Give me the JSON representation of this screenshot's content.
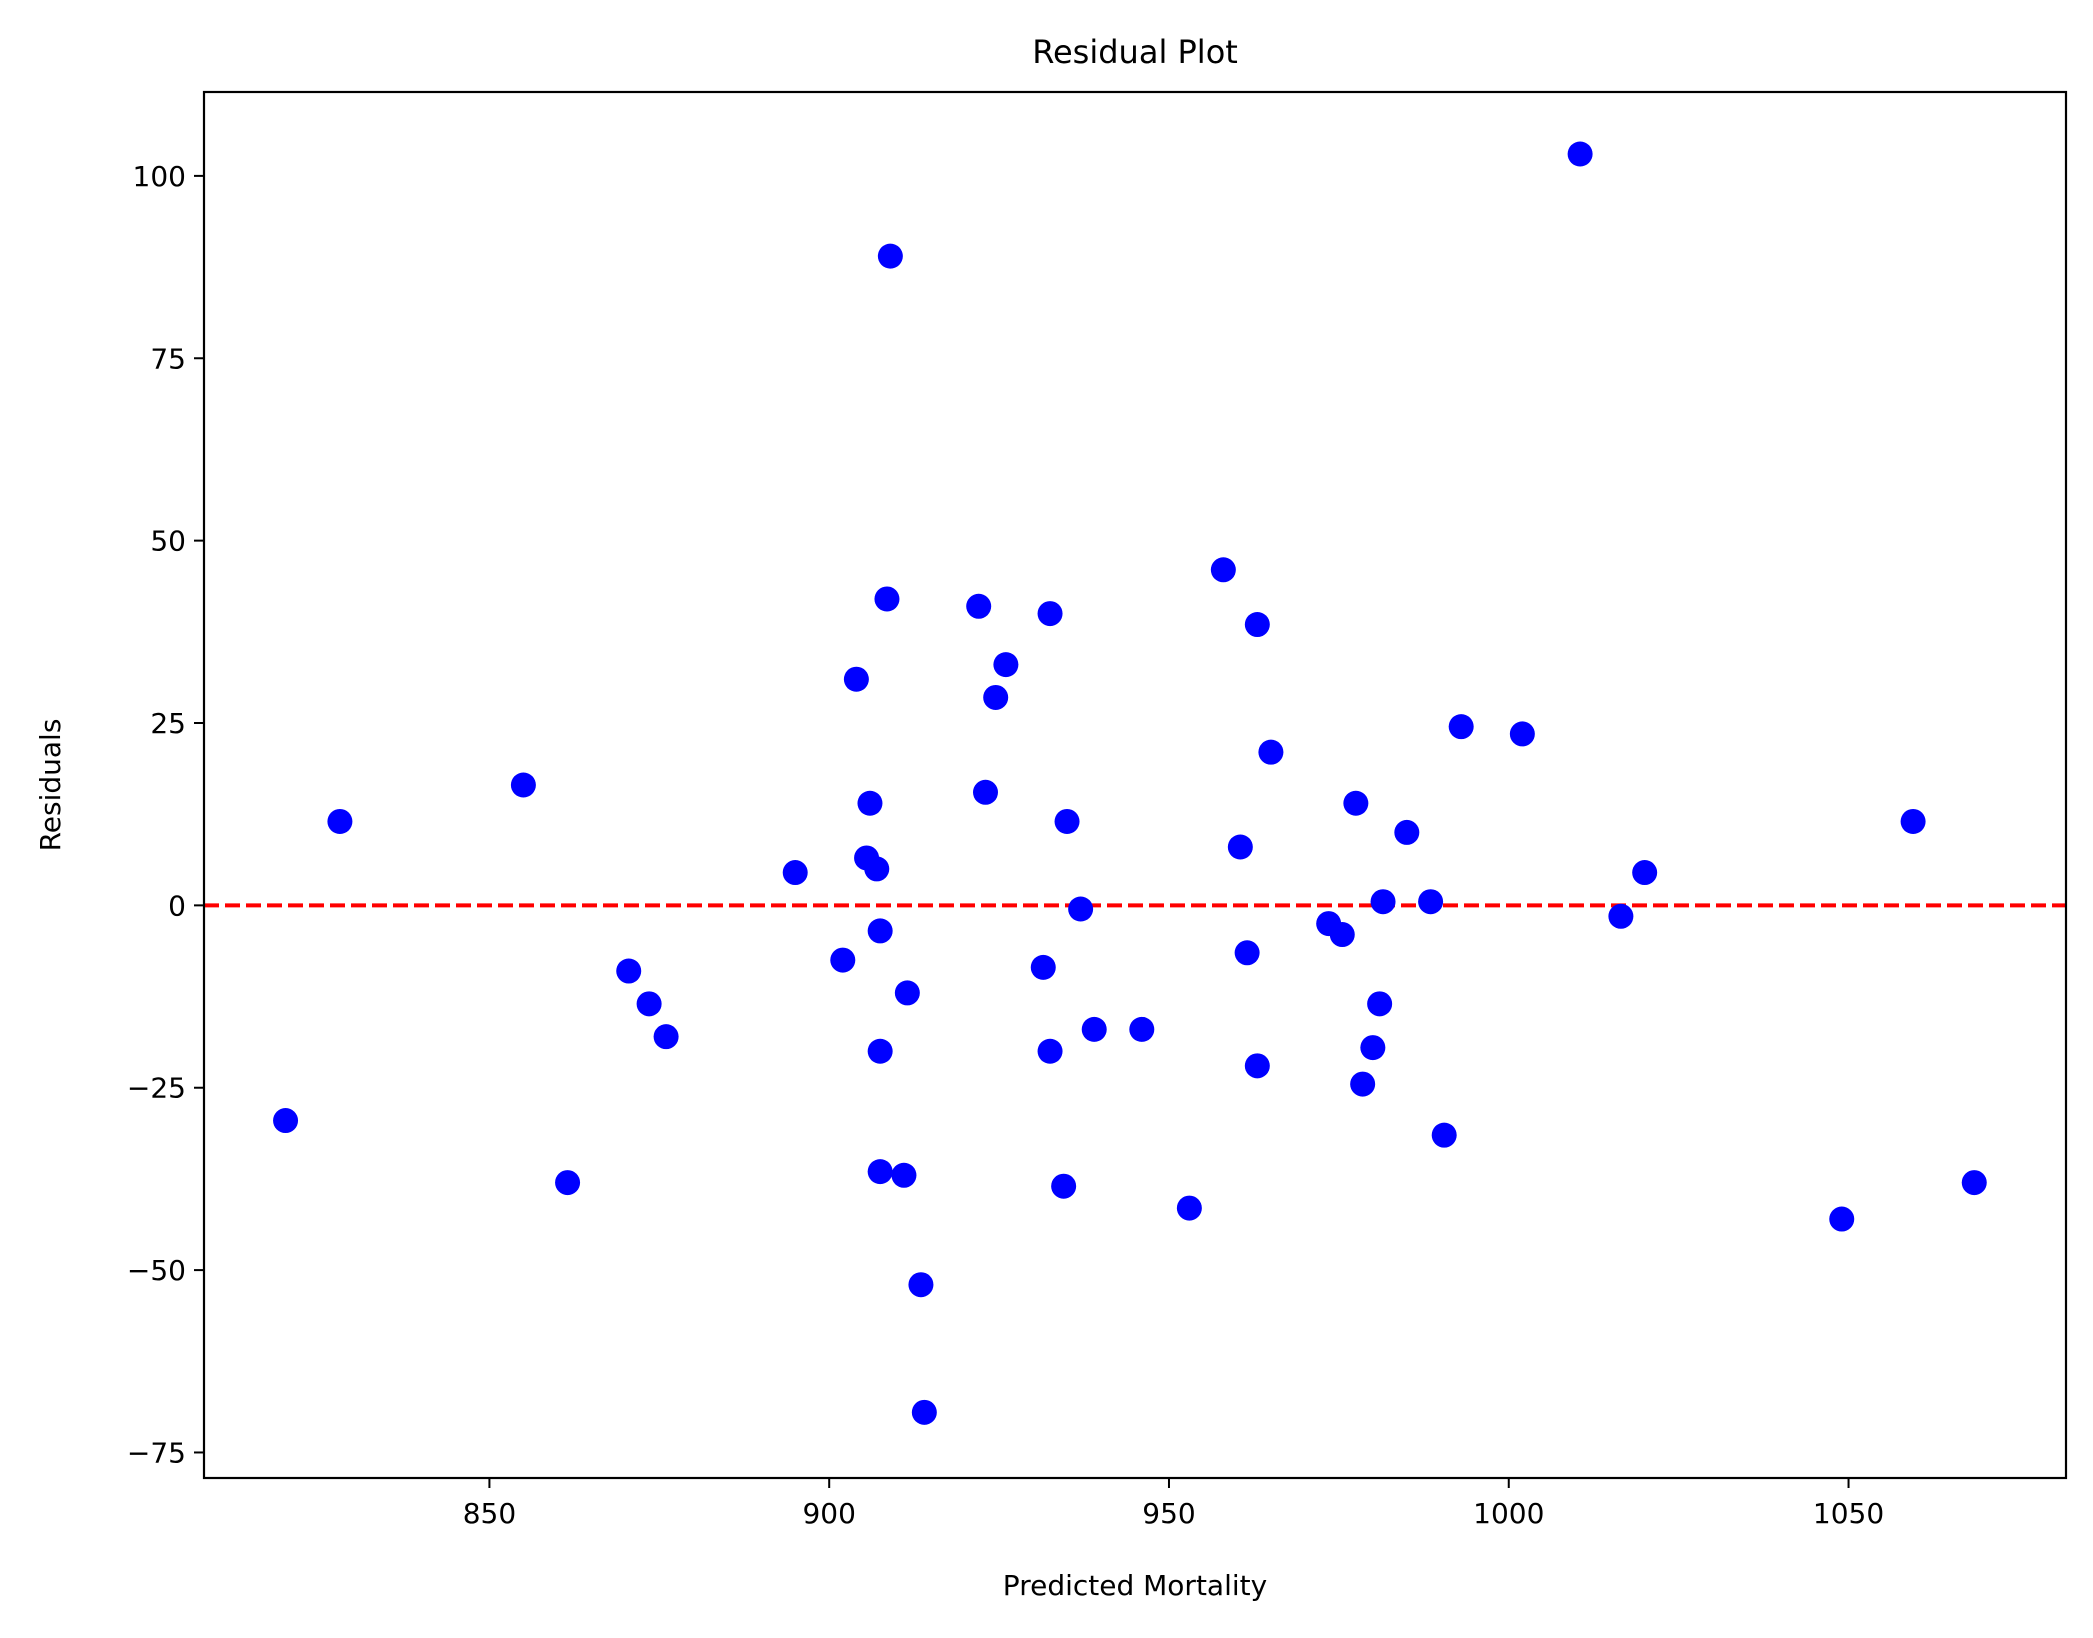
{
  "chart_data": {
    "type": "scatter",
    "title": "Residual Plot",
    "xlabel": "Predicted Mortality",
    "ylabel": "Residuals",
    "xlim": [
      808,
      1082
    ],
    "ylim": [
      -78.5,
      111.5
    ],
    "xticks": [
      850,
      900,
      950,
      1000,
      1050
    ],
    "yticks": [
      -75,
      -50,
      -25,
      0,
      25,
      50,
      75,
      100
    ],
    "grid": false,
    "legend": "none",
    "colors": {
      "points": "#0000ff",
      "reference_line": "#ff0000"
    },
    "reference_line": {
      "y": 0,
      "style": "dashed"
    },
    "series": [
      {
        "points": [
          [
            820.0,
            -29.5
          ],
          [
            828.0,
            11.5
          ],
          [
            855.0,
            16.5
          ],
          [
            861.5,
            -38.0
          ],
          [
            870.5,
            -9.0
          ],
          [
            873.5,
            -13.5
          ],
          [
            876.0,
            -18.0
          ],
          [
            895.0,
            4.5
          ],
          [
            902.0,
            -7.5
          ],
          [
            904.0,
            31.0
          ],
          [
            905.5,
            6.5
          ],
          [
            906.0,
            14.0
          ],
          [
            907.0,
            5.0
          ],
          [
            907.5,
            -3.5
          ],
          [
            907.5,
            -20.0
          ],
          [
            907.5,
            -36.5
          ],
          [
            908.5,
            42.0
          ],
          [
            909.0,
            89.0
          ],
          [
            911.0,
            -37.0
          ],
          [
            911.5,
            -12.0
          ],
          [
            913.5,
            -52.0
          ],
          [
            914.0,
            -69.5
          ],
          [
            922.0,
            41.0
          ],
          [
            923.0,
            15.5
          ],
          [
            924.5,
            28.5
          ],
          [
            926.0,
            33.0
          ],
          [
            931.5,
            -8.5
          ],
          [
            932.5,
            40.0
          ],
          [
            932.5,
            -20.0
          ],
          [
            934.5,
            -38.5
          ],
          [
            935.0,
            11.5
          ],
          [
            937.0,
            -0.5
          ],
          [
            939.0,
            -17.0
          ],
          [
            946.0,
            -17.0
          ],
          [
            953.0,
            -41.5
          ],
          [
            958.0,
            46.0
          ],
          [
            960.5,
            8.0
          ],
          [
            961.5,
            -6.5
          ],
          [
            963.0,
            38.5
          ],
          [
            963.0,
            -22.0
          ],
          [
            965.0,
            21.0
          ],
          [
            973.5,
            -2.5
          ],
          [
            975.5,
            -4.0
          ],
          [
            977.5,
            14.0
          ],
          [
            978.5,
            -24.5
          ],
          [
            980.0,
            -19.5
          ],
          [
            981.0,
            -13.5
          ],
          [
            981.5,
            0.5
          ],
          [
            985.0,
            10.0
          ],
          [
            988.5,
            0.5
          ],
          [
            990.5,
            -31.5
          ],
          [
            993.0,
            24.5
          ],
          [
            1002.0,
            23.5
          ],
          [
            1010.5,
            103.0
          ],
          [
            1016.5,
            -1.5
          ],
          [
            1020.0,
            4.5
          ],
          [
            1049.0,
            -43.0
          ],
          [
            1059.5,
            11.5
          ],
          [
            1068.5,
            -38.0
          ]
        ]
      }
    ]
  }
}
